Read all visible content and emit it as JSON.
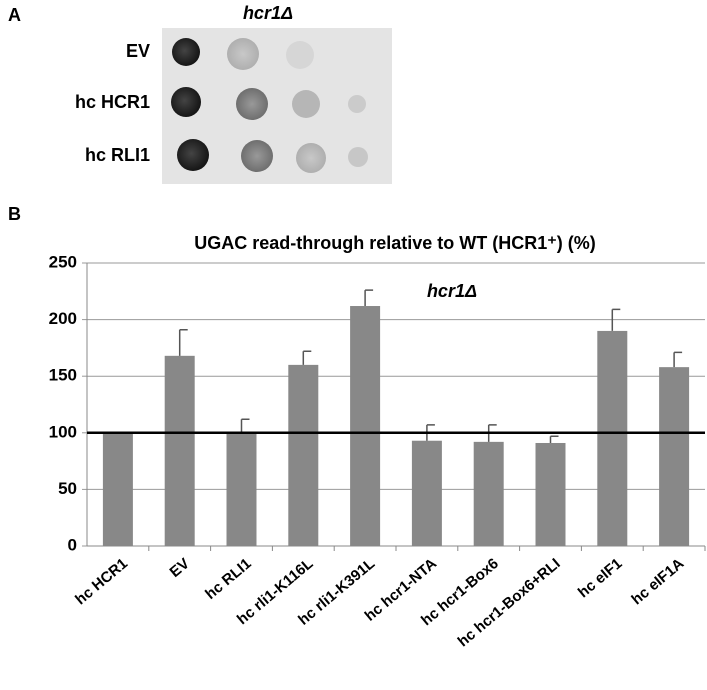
{
  "panel_a": {
    "label": "A",
    "title": "hcr1Δ",
    "rows": [
      "EV",
      "hc HCR1",
      "hc RLI1"
    ]
  },
  "chart_data": {
    "type": "bar",
    "panel_label": "B",
    "title": "UGAC read-through relative to WT (HCR1⁺) (%)",
    "annotation": "hcr1Δ",
    "categories": [
      "hc HCR1",
      "EV",
      "hc RLI1",
      "hc rli1-K116L",
      "hc rli1-K391L",
      "hc hcr1-NTA",
      "hc hcr1-Box6",
      "hc hcr1-Box6+RLI",
      "hc eIF1",
      "hc eIF1A"
    ],
    "values": [
      100,
      168,
      100,
      160,
      212,
      93,
      92,
      91,
      190,
      158
    ],
    "errors": [
      0,
      23,
      12,
      12,
      14,
      14,
      15,
      6,
      19,
      13
    ],
    "color": "#888888",
    "reference_line": 100,
    "ylim": [
      0,
      250
    ],
    "yticks": [
      0,
      50,
      100,
      150,
      200,
      250
    ],
    "grid": true
  }
}
